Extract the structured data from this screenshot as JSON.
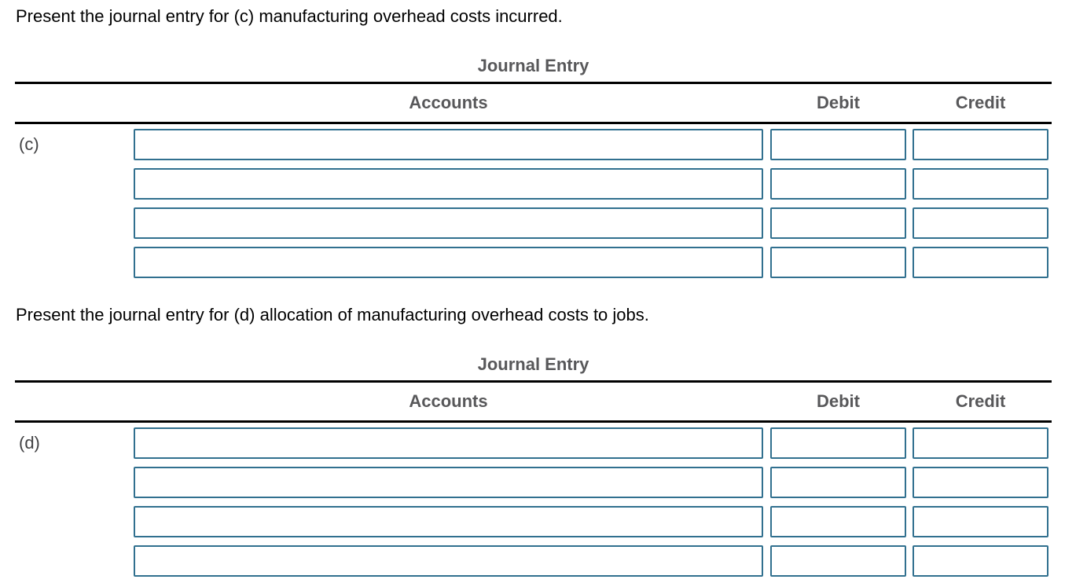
{
  "colors": {
    "input_border": "#31708f",
    "header_text": "#58585a",
    "question_text": "#000000",
    "row_label_text": "#414143",
    "rule": "#000000",
    "background": "#ffffff"
  },
  "sections": [
    {
      "question": "Present the journal entry for (c) manufacturing overhead costs incurred.",
      "row_label": "(c)",
      "table": {
        "title": "Journal Entry",
        "headers": {
          "accounts": "Accounts",
          "debit": "Debit",
          "credit": "Credit"
        },
        "rows": [
          {
            "accounts": "",
            "debit": "",
            "credit": ""
          },
          {
            "accounts": "",
            "debit": "",
            "credit": ""
          },
          {
            "accounts": "",
            "debit": "",
            "credit": ""
          },
          {
            "accounts": "",
            "debit": "",
            "credit": ""
          }
        ]
      }
    },
    {
      "question": "Present the journal entry for (d) allocation of manufacturing overhead costs to jobs.",
      "row_label": "(d)",
      "table": {
        "title": "Journal Entry",
        "headers": {
          "accounts": "Accounts",
          "debit": "Debit",
          "credit": "Credit"
        },
        "rows": [
          {
            "accounts": "",
            "debit": "",
            "credit": ""
          },
          {
            "accounts": "",
            "debit": "",
            "credit": ""
          },
          {
            "accounts": "",
            "debit": "",
            "credit": ""
          },
          {
            "accounts": "",
            "debit": "",
            "credit": ""
          }
        ]
      }
    }
  ]
}
